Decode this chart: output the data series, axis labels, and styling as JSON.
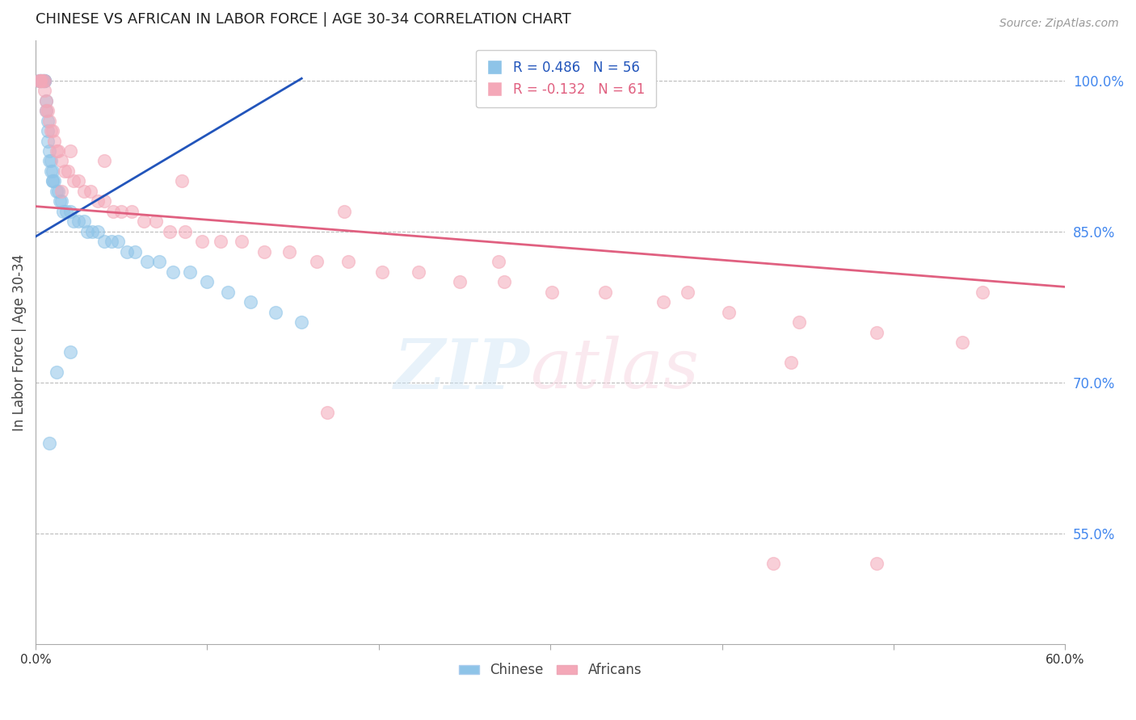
{
  "title": "CHINESE VS AFRICAN IN LABOR FORCE | AGE 30-34 CORRELATION CHART",
  "source": "Source: ZipAtlas.com",
  "ylabel": "In Labor Force | Age 30-34",
  "xlim": [
    0.0,
    0.6
  ],
  "ylim": [
    0.44,
    1.04
  ],
  "xtick_values": [
    0.0,
    0.1,
    0.2,
    0.3,
    0.4,
    0.5,
    0.6
  ],
  "xtick_labels_ends": {
    "0.0": "0.0%",
    "0.6": "60.0%"
  },
  "ytick_right_labels": [
    "55.0%",
    "70.0%",
    "85.0%",
    "100.0%"
  ],
  "ytick_right_values": [
    0.55,
    0.7,
    0.85,
    1.0
  ],
  "hlines": [
    0.55,
    0.7,
    0.85,
    1.0
  ],
  "chinese_R": 0.486,
  "chinese_N": 56,
  "african_R": -0.132,
  "african_N": 61,
  "chinese_color": "#8ec4e8",
  "african_color": "#f4a8b8",
  "trendline_chinese_color": "#2255bb",
  "trendline_african_color": "#e06080",
  "legend_chinese_label": "Chinese",
  "legend_african_label": "Africans",
  "ch_trend_x0": 0.0,
  "ch_trend_x1": 0.155,
  "ch_trend_y0": 0.845,
  "ch_trend_y1": 1.002,
  "af_trend_x0": 0.0,
  "af_trend_x1": 0.6,
  "af_trend_y0": 0.875,
  "af_trend_y1": 0.795,
  "chinese_x": [
    0.002,
    0.003,
    0.003,
    0.003,
    0.003,
    0.003,
    0.004,
    0.004,
    0.004,
    0.005,
    0.005,
    0.005,
    0.005,
    0.006,
    0.006,
    0.007,
    0.007,
    0.007,
    0.008,
    0.008,
    0.009,
    0.009,
    0.01,
    0.01,
    0.01,
    0.011,
    0.012,
    0.013,
    0.014,
    0.015,
    0.016,
    0.018,
    0.02,
    0.022,
    0.025,
    0.028,
    0.03,
    0.033,
    0.036,
    0.04,
    0.044,
    0.048,
    0.053,
    0.058,
    0.065,
    0.072,
    0.08,
    0.09,
    0.1,
    0.112,
    0.125,
    0.14,
    0.155,
    0.012,
    0.02,
    0.008
  ],
  "chinese_y": [
    1.0,
    1.0,
    1.0,
    1.0,
    1.0,
    1.0,
    1.0,
    1.0,
    1.0,
    1.0,
    1.0,
    1.0,
    1.0,
    0.98,
    0.97,
    0.96,
    0.95,
    0.94,
    0.93,
    0.92,
    0.92,
    0.91,
    0.91,
    0.9,
    0.9,
    0.9,
    0.89,
    0.89,
    0.88,
    0.88,
    0.87,
    0.87,
    0.87,
    0.86,
    0.86,
    0.86,
    0.85,
    0.85,
    0.85,
    0.84,
    0.84,
    0.84,
    0.83,
    0.83,
    0.82,
    0.82,
    0.81,
    0.81,
    0.8,
    0.79,
    0.78,
    0.77,
    0.76,
    0.71,
    0.73,
    0.64
  ],
  "african_x": [
    0.002,
    0.003,
    0.003,
    0.004,
    0.005,
    0.005,
    0.006,
    0.006,
    0.007,
    0.008,
    0.009,
    0.01,
    0.011,
    0.012,
    0.013,
    0.015,
    0.017,
    0.019,
    0.022,
    0.025,
    0.028,
    0.032,
    0.036,
    0.04,
    0.045,
    0.05,
    0.056,
    0.063,
    0.07,
    0.078,
    0.087,
    0.097,
    0.108,
    0.12,
    0.133,
    0.148,
    0.164,
    0.182,
    0.202,
    0.223,
    0.247,
    0.273,
    0.301,
    0.332,
    0.366,
    0.404,
    0.445,
    0.49,
    0.54,
    0.552,
    0.04,
    0.085,
    0.18,
    0.27,
    0.38,
    0.44,
    0.17,
    0.43,
    0.49,
    0.02,
    0.015
  ],
  "african_y": [
    1.0,
    1.0,
    1.0,
    1.0,
    1.0,
    0.99,
    0.98,
    0.97,
    0.97,
    0.96,
    0.95,
    0.95,
    0.94,
    0.93,
    0.93,
    0.92,
    0.91,
    0.91,
    0.9,
    0.9,
    0.89,
    0.89,
    0.88,
    0.88,
    0.87,
    0.87,
    0.87,
    0.86,
    0.86,
    0.85,
    0.85,
    0.84,
    0.84,
    0.84,
    0.83,
    0.83,
    0.82,
    0.82,
    0.81,
    0.81,
    0.8,
    0.8,
    0.79,
    0.79,
    0.78,
    0.77,
    0.76,
    0.75,
    0.74,
    0.79,
    0.92,
    0.9,
    0.87,
    0.82,
    0.79,
    0.72,
    0.67,
    0.52,
    0.52,
    0.93,
    0.89
  ]
}
